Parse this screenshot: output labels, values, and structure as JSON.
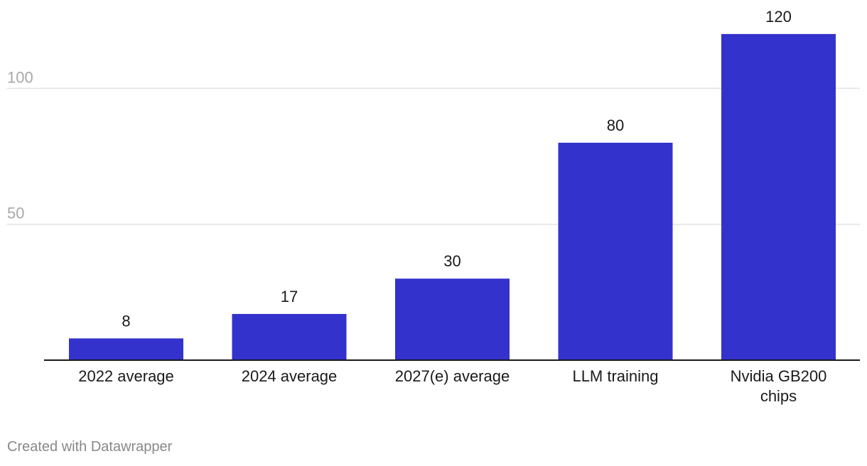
{
  "chart_data": {
    "type": "bar",
    "categories": [
      [
        "2022 average"
      ],
      [
        "2024 average"
      ],
      [
        "2027(e) average"
      ],
      [
        "LLM training"
      ],
      [
        "Nvidia GB200",
        "chips"
      ]
    ],
    "values": [
      8,
      17,
      30,
      80,
      120
    ],
    "y_ticks": [
      50,
      100
    ],
    "ylim": [
      0,
      120
    ],
    "grid": "horizontal",
    "bar_color": "#3432cc",
    "title": "",
    "xlabel": "",
    "ylabel": ""
  },
  "footer": {
    "credit": "Created with Datawrapper"
  }
}
